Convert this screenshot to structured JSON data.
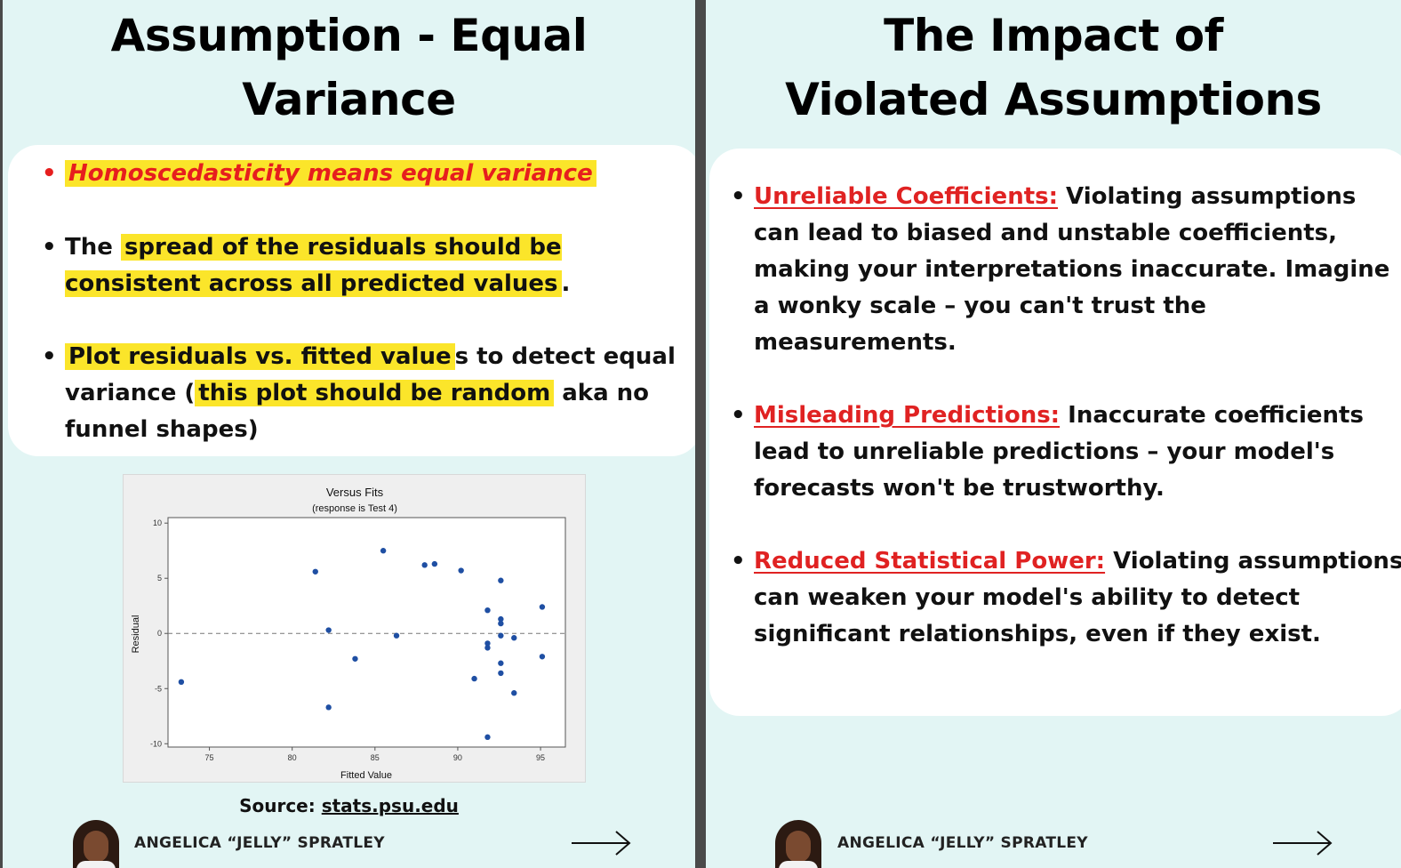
{
  "left_slide": {
    "title": "Assumption - Equal Variance",
    "bullet1": "Homoscedasticity means equal variance",
    "bullet2": {
      "pre": "The ",
      "hl": "spread of the residuals should be consistent across all predicted values",
      "post": "."
    },
    "bullet3": {
      "hl1": "Plot residuals vs. fitted value",
      "mid1": "s to detect equal variance (",
      "hl2": "this plot should be random",
      "post": " aka no funnel shapes)"
    },
    "source_label": "Source:",
    "source_link": "stats.psu.edu",
    "author": "ANGELICA “JELLY” SPRATLEY"
  },
  "right_slide": {
    "title": "The Impact of Violated Assumptions",
    "items": [
      {
        "term": "Unreliable Coefficients:",
        "text": " Violating assumptions can lead to biased and unstable coefficients, making your interpretations inaccurate. Imagine a wonky scale – you can't trust the measurements."
      },
      {
        "term": "Misleading Predictions:",
        "text": " Inaccurate coefficients lead to unreliable predictions – your model's forecasts won't be trustworthy."
      },
      {
        "term": "Reduced Statistical Power:",
        "text": " Violating assumptions can weaken your model's ability to detect significant relationships, even if they exist."
      }
    ],
    "author": "ANGELICA “JELLY” SPRATLEY"
  },
  "colors": {
    "background": "#e2f5f4",
    "highlight": "#fbe52a",
    "red": "#e02222",
    "point": "#1f4fa3"
  },
  "icons": [
    "right-arrow-icon",
    "avatar-photo"
  ],
  "chart_data": {
    "type": "scatter",
    "title": "Versus Fits",
    "subtitle": "(response is Test 4)",
    "xlabel": "Fitted Value",
    "ylabel": "Residual",
    "xlim": [
      72.5,
      96.5
    ],
    "ylim": [
      -10.3,
      10.5
    ],
    "xticks": [
      75,
      80,
      85,
      90,
      95
    ],
    "yticks": [
      10,
      5,
      0,
      -5,
      -10
    ],
    "reference_line_y": 0,
    "points": [
      [
        73.3,
        -4.4
      ],
      [
        81.4,
        5.6
      ],
      [
        82.2,
        0.3
      ],
      [
        82.2,
        -6.7
      ],
      [
        83.8,
        -2.3
      ],
      [
        85.5,
        7.5
      ],
      [
        86.3,
        -0.2
      ],
      [
        88.0,
        6.2
      ],
      [
        88.6,
        6.3
      ],
      [
        90.2,
        5.7
      ],
      [
        91.0,
        -4.1
      ],
      [
        91.8,
        2.1
      ],
      [
        91.8,
        -0.9
      ],
      [
        91.8,
        -1.3
      ],
      [
        91.8,
        -9.4
      ],
      [
        92.6,
        4.8
      ],
      [
        92.6,
        1.3
      ],
      [
        92.6,
        0.9
      ],
      [
        92.6,
        -0.2
      ],
      [
        92.6,
        -2.7
      ],
      [
        92.6,
        -3.6
      ],
      [
        93.4,
        -0.4
      ],
      [
        93.4,
        -5.4
      ],
      [
        95.1,
        2.4
      ],
      [
        95.1,
        -2.1
      ]
    ]
  }
}
